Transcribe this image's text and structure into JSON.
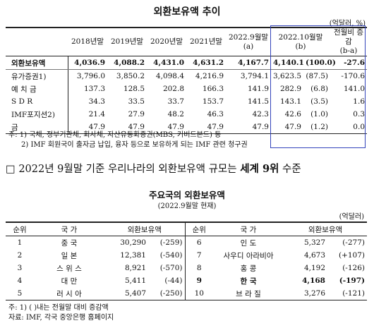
{
  "table1": {
    "title": "외환보유액 추이",
    "unit": "(억달러, %)",
    "header": [
      "2018년말",
      "2019년말",
      "2020년말",
      "2021년말",
      "2022.9월말\n(a)",
      "2022.10월말\n(b)",
      "전월비 증감\n(b-a)"
    ],
    "rows": [
      {
        "label": "외환보유액",
        "cells": [
          "4,036.9",
          "4,088.2",
          "4,431.0",
          "4,631.2",
          "4,167.7",
          "4,140.1",
          "(100.0)",
          "-27.6"
        ]
      },
      {
        "label": "유가증권1)",
        "cells": [
          "3,796.0",
          "3,850.2",
          "4,098.4",
          "4,216.9",
          "3,794.1",
          "3,623.5",
          "(87.5)",
          "-170.6"
        ]
      },
      {
        "label": "예 치 금",
        "cells": [
          "137.3",
          "128.5",
          "202.8",
          "166.3",
          "141.9",
          "282.9",
          "(6.8)",
          "141.0"
        ]
      },
      {
        "label": "S D R",
        "cells": [
          "34.3",
          "33.5",
          "33.7",
          "153.7",
          "141.5",
          "143.1",
          "(3.5)",
          "1.6"
        ]
      },
      {
        "label": "IMF포지션2)",
        "cells": [
          "21.4",
          "27.9",
          "48.2",
          "46.3",
          "42.3",
          "42.6",
          "(1.0)",
          "0.3"
        ]
      },
      {
        "label": "금",
        "cells": [
          "47.9",
          "47.9",
          "47.9",
          "47.9",
          "47.9",
          "47.9",
          "(1.2)",
          "0.0"
        ]
      }
    ],
    "notes": [
      "주: 1) 국채, 정부기관채, 회사채, 자산유동화증권(MBS, 커버드본드) 등",
      "2) IMF 회원국이 출자금 납입, 융자 등으로 보유하게 되는 IMF 관련 청구권"
    ]
  },
  "headline": {
    "marker": "□",
    "prefix": "2022년 9월말 기준 우리나라의 외환보유액 규모는",
    "bold": "세계 9위",
    "suffix": "수준"
  },
  "table2": {
    "title": "주요국의 외환보유액",
    "subtitle": "(2022.9월말 현재)",
    "unit": "(억달러)",
    "header": [
      "순위",
      "국 가",
      "외환보유액",
      "순위",
      "국 가",
      "외환보유액"
    ],
    "rows": [
      [
        "1",
        "중 국",
        "30,290",
        "(-259)",
        "6",
        "인 도",
        "5,327",
        "(-277)"
      ],
      [
        "2",
        "일 본",
        "12,381",
        "(-540)",
        "7",
        "사우디 아라비아",
        "4,673",
        "(+107)"
      ],
      [
        "3",
        "스 위 스",
        "8,921",
        "(-570)",
        "8",
        "홍 콩",
        "4,192",
        "(-126)"
      ],
      [
        "4",
        "대 만",
        "5,411",
        "(-44)",
        "9",
        "한 국",
        "4,168",
        "(-197)"
      ],
      [
        "5",
        "러 시 아",
        "5,407",
        "(-250)",
        "10",
        "브 라 질",
        "3,276",
        "(-121)"
      ]
    ],
    "notes": [
      "주: 1) ( )내는 전월말 대비 증감액",
      "자료: IMF, 각국 중앙은행 홈페이지"
    ]
  }
}
